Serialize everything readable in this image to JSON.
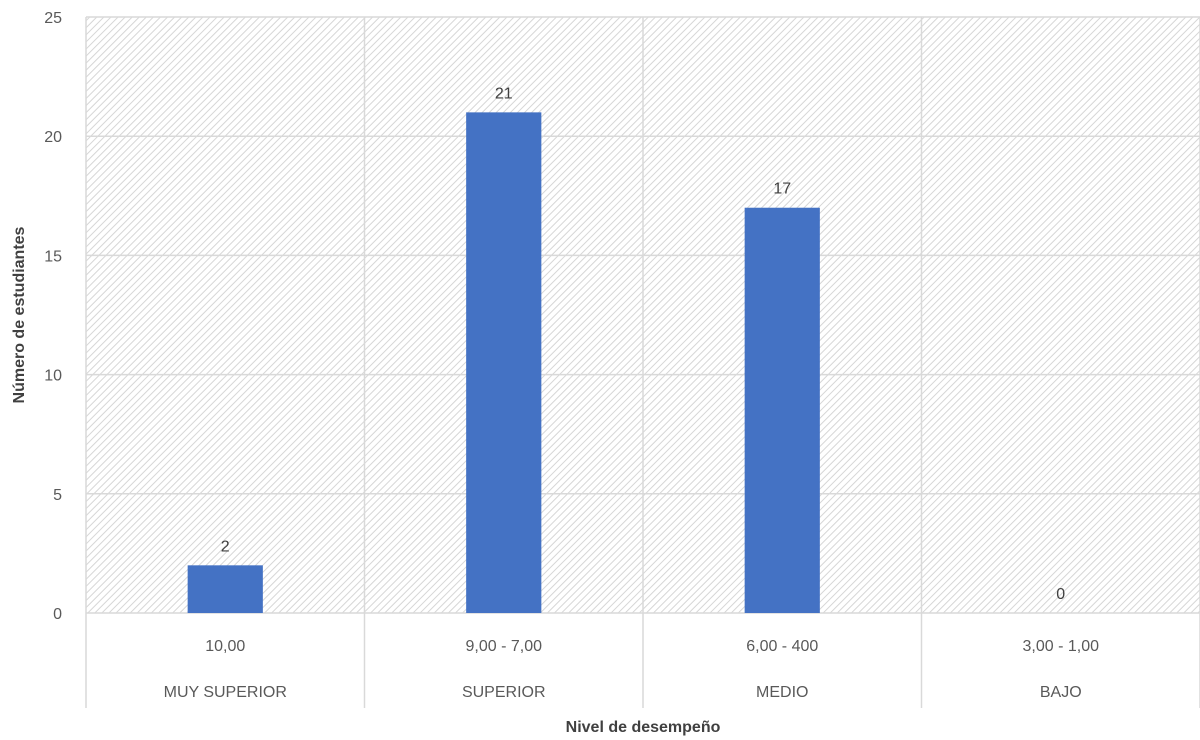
{
  "chart_data": {
    "type": "bar",
    "categories": [
      {
        "range": "10,00",
        "level": "MUY SUPERIOR"
      },
      {
        "range": "9,00 - 7,00",
        "level": "SUPERIOR"
      },
      {
        "range": "6,00 - 400",
        "level": "MEDIO"
      },
      {
        "range": "3,00 - 1,00",
        "level": "BAJO"
      }
    ],
    "values": [
      2,
      21,
      17,
      0
    ],
    "data_labels": [
      "2",
      "21",
      "17",
      "0"
    ],
    "title": "",
    "xlabel": "Nivel de desempeño",
    "ylabel": "Número de estudiantes",
    "ylim": [
      0,
      25
    ],
    "yticks": [
      "0",
      "5",
      "10",
      "15",
      "20",
      "25"
    ],
    "grid": true,
    "bar_color": "#4472c4",
    "grid_color": "#d9d9d9",
    "background_pattern": "diagonal-hatch"
  }
}
